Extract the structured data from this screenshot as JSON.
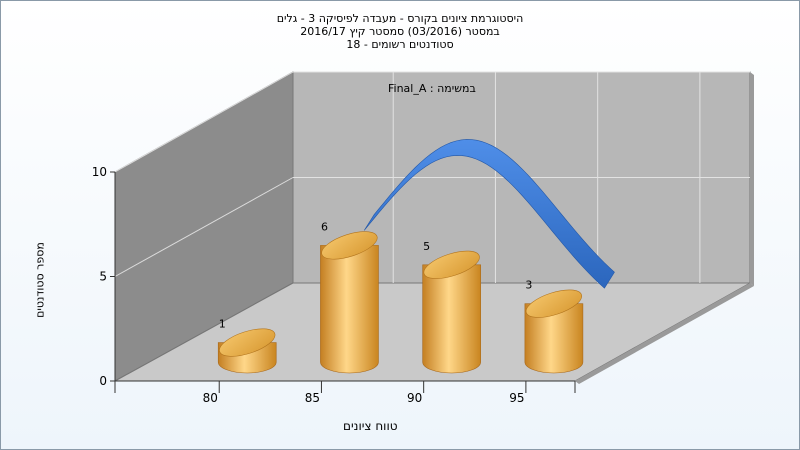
{
  "chart_data": {
    "type": "bar",
    "title_lines": [
      "היסטוגרמת ציונים בקורס - מעבדה לפיסיקה 3 - גלים",
      "במסטר  (03/2016)  סמסטר קיץ 2016/17",
      "סטודנטים רשומים - 18"
    ],
    "legend_label": "במשימה : Final_A",
    "xlabel": "טווח ציונים",
    "ylabel": "מספר סטודנטים",
    "x_ticks": [
      "80",
      "85",
      "90",
      "95"
    ],
    "y_ticks": [
      "0",
      "5",
      "10"
    ],
    "ylim": [
      0,
      10
    ],
    "bars": [
      {
        "label": "80",
        "value": 1
      },
      {
        "label": "85",
        "value": 6
      },
      {
        "label": "90",
        "value": 5
      },
      {
        "label": "95",
        "value": 3
      }
    ],
    "bar_value_labels": [
      "1",
      "6",
      "5",
      "3"
    ],
    "colors": {
      "bar": "#e8a33c",
      "bar_highlight": "#ffd789",
      "curve": "#2f6fc7",
      "back_wall": "#b7b7b7",
      "side_wall": "#8c8c8c",
      "floor": "#c9c9c9"
    }
  }
}
